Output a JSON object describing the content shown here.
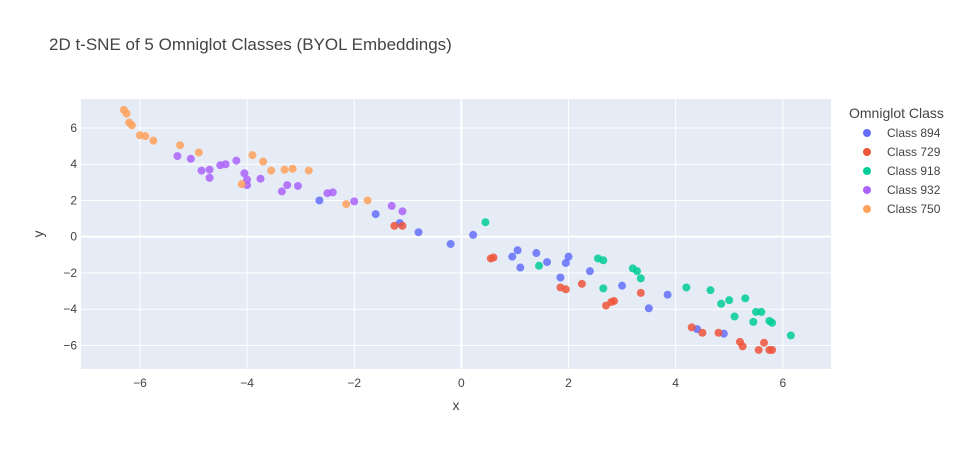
{
  "chart_data": {
    "type": "scatter",
    "title": "2D t-SNE of 5 Omniglot Classes (BYOL Embeddings)",
    "xlabel": "x",
    "ylabel": "y",
    "xlim": [
      -7.1,
      6.9
    ],
    "ylim": [
      -7.3,
      7.6
    ],
    "xticks": [
      -6,
      -4,
      -2,
      0,
      2,
      4,
      6
    ],
    "yticks": [
      -6,
      -4,
      -2,
      0,
      2,
      4,
      6
    ],
    "grid": true,
    "plot_bgcolor": "#E5ECF6",
    "legend": {
      "title": "Omniglot Class",
      "position": "right"
    },
    "series": [
      {
        "name": "Class 894",
        "color": "#636EFA",
        "points": [
          [
            -2.65,
            2.0
          ],
          [
            -1.6,
            1.25
          ],
          [
            -1.15,
            0.75
          ],
          [
            -0.8,
            0.25
          ],
          [
            -0.2,
            -0.4
          ],
          [
            0.22,
            0.1
          ],
          [
            0.95,
            -1.1
          ],
          [
            1.05,
            -0.75
          ],
          [
            1.1,
            -1.7
          ],
          [
            1.4,
            -0.9
          ],
          [
            1.6,
            -1.4
          ],
          [
            1.85,
            -2.25
          ],
          [
            1.95,
            -1.45
          ],
          [
            2.0,
            -1.1
          ],
          [
            2.4,
            -1.9
          ],
          [
            3.0,
            -2.7
          ],
          [
            3.5,
            -3.95
          ],
          [
            3.85,
            -3.2
          ],
          [
            4.4,
            -5.1
          ],
          [
            4.9,
            -5.35
          ]
        ]
      },
      {
        "name": "Class 729",
        "color": "#EF553B",
        "points": [
          [
            -1.25,
            0.6
          ],
          [
            -1.1,
            0.6
          ],
          [
            0.55,
            -1.2
          ],
          [
            0.6,
            -1.15
          ],
          [
            1.85,
            -2.8
          ],
          [
            1.95,
            -2.9
          ],
          [
            2.25,
            -2.6
          ],
          [
            2.7,
            -3.8
          ],
          [
            2.8,
            -3.6
          ],
          [
            2.85,
            -3.55
          ],
          [
            3.35,
            -3.1
          ],
          [
            4.3,
            -5.0
          ],
          [
            4.5,
            -5.3
          ],
          [
            4.8,
            -5.3
          ],
          [
            5.2,
            -5.8
          ],
          [
            5.25,
            -6.05
          ],
          [
            5.55,
            -6.25
          ],
          [
            5.65,
            -5.85
          ],
          [
            5.75,
            -6.25
          ],
          [
            5.8,
            -6.25
          ]
        ]
      },
      {
        "name": "Class 918",
        "color": "#00CC96",
        "points": [
          [
            0.45,
            0.8
          ],
          [
            1.45,
            -1.6
          ],
          [
            2.55,
            -1.2
          ],
          [
            2.65,
            -1.3
          ],
          [
            2.65,
            -2.85
          ],
          [
            3.2,
            -1.75
          ],
          [
            3.28,
            -1.9
          ],
          [
            3.35,
            -2.3
          ],
          [
            4.2,
            -2.8
          ],
          [
            4.65,
            -2.95
          ],
          [
            4.85,
            -3.7
          ],
          [
            5.0,
            -3.5
          ],
          [
            5.1,
            -4.4
          ],
          [
            5.3,
            -3.4
          ],
          [
            5.45,
            -4.7
          ],
          [
            5.5,
            -4.15
          ],
          [
            5.6,
            -4.15
          ],
          [
            5.75,
            -4.65
          ],
          [
            5.8,
            -4.75
          ],
          [
            6.15,
            -5.45
          ]
        ]
      },
      {
        "name": "Class 932",
        "color": "#AB63FA",
        "points": [
          [
            -5.3,
            4.45
          ],
          [
            -5.05,
            4.3
          ],
          [
            -4.85,
            3.65
          ],
          [
            -4.7,
            3.7
          ],
          [
            -4.7,
            3.25
          ],
          [
            -4.5,
            3.95
          ],
          [
            -4.4,
            4.0
          ],
          [
            -4.2,
            4.2
          ],
          [
            -4.05,
            3.5
          ],
          [
            -4.0,
            3.15
          ],
          [
            -4.0,
            2.85
          ],
          [
            -3.75,
            3.2
          ],
          [
            -3.35,
            2.5
          ],
          [
            -3.25,
            2.85
          ],
          [
            -3.05,
            2.8
          ],
          [
            -2.5,
            2.4
          ],
          [
            -2.4,
            2.45
          ],
          [
            -2.0,
            1.95
          ],
          [
            -1.3,
            1.7
          ],
          [
            -1.1,
            1.4
          ]
        ]
      },
      {
        "name": "Class 750",
        "color": "#FFA15A",
        "points": [
          [
            -6.3,
            7.0
          ],
          [
            -6.25,
            6.8
          ],
          [
            -6.2,
            6.3
          ],
          [
            -6.15,
            6.15
          ],
          [
            -6.0,
            5.6
          ],
          [
            -5.9,
            5.55
          ],
          [
            -5.75,
            5.3
          ],
          [
            -5.25,
            5.05
          ],
          [
            -4.9,
            4.65
          ],
          [
            -4.1,
            2.9
          ],
          [
            -3.9,
            4.5
          ],
          [
            -3.7,
            4.15
          ],
          [
            -3.55,
            3.65
          ],
          [
            -3.3,
            3.7
          ],
          [
            -3.15,
            3.75
          ],
          [
            -2.85,
            3.65
          ],
          [
            -2.15,
            1.8
          ],
          [
            -1.75,
            2.0
          ]
        ]
      }
    ]
  }
}
